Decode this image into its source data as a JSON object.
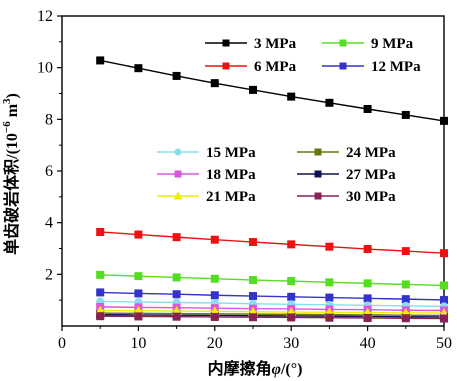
{
  "chart_data": {
    "type": "line",
    "xlabel": "内摩擦角",
    "xlabel_symbol": "φ",
    "xlabel_unit": "/(°)",
    "ylabel": "单齿破岩体积",
    "ylabel_unit_base": "/(10",
    "ylabel_unit_exp": "−6",
    "ylabel_unit_tail": " m",
    "ylabel_unit_sup3": "3",
    "ylabel_unit_close": ")",
    "xlim": [
      0,
      50
    ],
    "ylim": [
      0,
      12
    ],
    "xticks": [
      0,
      10,
      20,
      30,
      40,
      50
    ],
    "yticks": [
      2,
      4,
      6,
      8,
      10,
      12
    ],
    "x": [
      5,
      10,
      15,
      20,
      25,
      30,
      35,
      40,
      45,
      50
    ],
    "series": [
      {
        "name": "3 MPa",
        "color": "#000000",
        "marker": "square",
        "values": [
          10.28,
          9.98,
          9.68,
          9.4,
          9.14,
          8.88,
          8.64,
          8.4,
          8.17,
          7.94
        ]
      },
      {
        "name": "9 MPa",
        "color": "#55dd22",
        "marker": "square",
        "values": [
          1.98,
          1.93,
          1.88,
          1.83,
          1.78,
          1.74,
          1.69,
          1.65,
          1.61,
          1.57
        ]
      },
      {
        "name": "6 MPa",
        "color": "#ee1111",
        "marker": "square",
        "values": [
          3.64,
          3.54,
          3.44,
          3.34,
          3.25,
          3.16,
          3.07,
          2.98,
          2.9,
          2.82
        ]
      },
      {
        "name": "12 MPa",
        "color": "#3333cc",
        "marker": "square",
        "values": [
          1.3,
          1.26,
          1.23,
          1.19,
          1.16,
          1.13,
          1.1,
          1.07,
          1.04,
          1.01
        ]
      },
      {
        "name": "15 MPa",
        "color": "#88ddee",
        "marker": "circle",
        "values": [
          0.95,
          0.93,
          0.91,
          0.89,
          0.86,
          0.84,
          0.82,
          0.8,
          0.78,
          0.76
        ]
      },
      {
        "name": "24 MPa",
        "color": "#667711",
        "marker": "square",
        "values": [
          0.5,
          0.49,
          0.48,
          0.47,
          0.46,
          0.45,
          0.44,
          0.43,
          0.42,
          0.41
        ]
      },
      {
        "name": "18 MPa",
        "color": "#dd55dd",
        "marker": "square",
        "values": [
          0.74,
          0.72,
          0.71,
          0.69,
          0.67,
          0.66,
          0.64,
          0.63,
          0.61,
          0.6
        ]
      },
      {
        "name": "27 MPa",
        "color": "#111155",
        "marker": "square",
        "values": [
          0.44,
          0.43,
          0.42,
          0.41,
          0.4,
          0.39,
          0.38,
          0.37,
          0.36,
          0.35
        ]
      },
      {
        "name": "21 MPa",
        "color": "#eeee00",
        "marker": "triangle",
        "values": [
          0.6,
          0.59,
          0.58,
          0.57,
          0.55,
          0.54,
          0.53,
          0.52,
          0.51,
          0.5
        ]
      },
      {
        "name": "30 MPa",
        "color": "#882255",
        "marker": "square",
        "values": [
          0.38,
          0.37,
          0.36,
          0.35,
          0.34,
          0.33,
          0.32,
          0.31,
          0.3,
          0.29
        ]
      }
    ]
  }
}
